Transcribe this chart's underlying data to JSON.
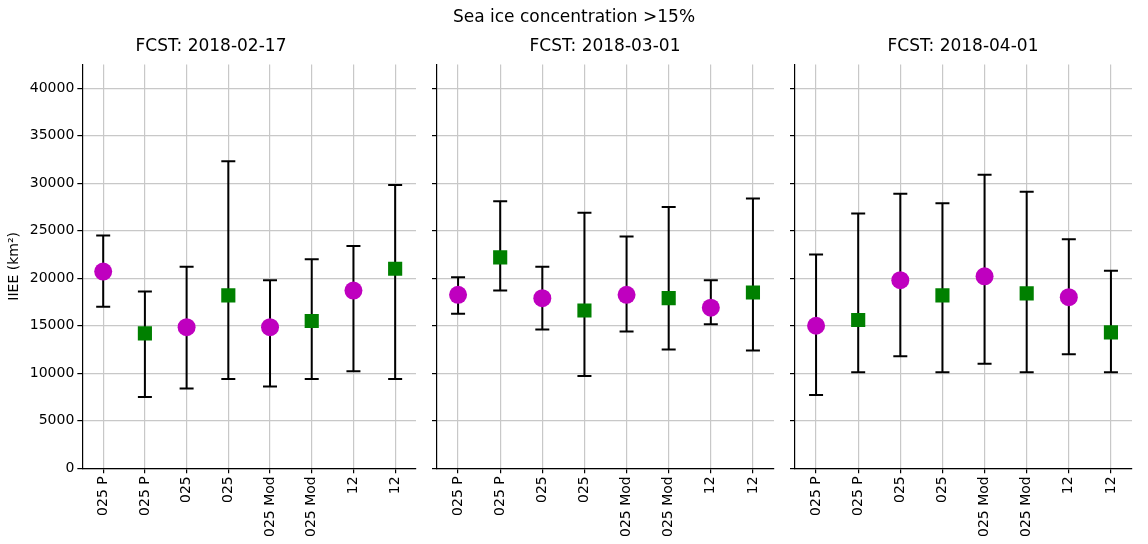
{
  "chart_data": [
    {
      "type": "scatter",
      "title": "FCST: 2018-02-17",
      "ylabel": "IIEE (km²)",
      "annotations": [
        "Sea ice concentration >15%"
      ],
      "categories": [
        "025 P",
        "025 P",
        "025",
        "025",
        "025 Mod",
        "025 Mod",
        "12",
        "12"
      ],
      "ylim": [
        0,
        42500
      ],
      "yticks": [
        0,
        5000,
        10000,
        15000,
        20000,
        25000,
        30000,
        35000,
        40000
      ],
      "grid": true,
      "series": [
        {
          "color": "#bf00bf",
          "marker": "circle",
          "values": [
            20700,
            null,
            14850,
            null,
            14850,
            null,
            18700,
            null
          ],
          "errors": [
            [
              17000,
              24500
            ],
            null,
            [
              8400,
              21200
            ],
            null,
            [
              8600,
              19800
            ],
            null,
            [
              10200,
              23400
            ],
            null
          ]
        },
        {
          "color": "#008000",
          "marker": "square",
          "values": [
            null,
            14200,
            null,
            18200,
            null,
            15500,
            null,
            21000
          ],
          "errors": [
            null,
            [
              7500,
              18600
            ],
            null,
            [
              9400,
              32300
            ],
            null,
            [
              9400,
              22000
            ],
            null,
            [
              9400,
              29800
            ]
          ]
        }
      ]
    },
    {
      "type": "scatter",
      "title": "FCST: 2018-03-01",
      "categories": [
        "025 P",
        "025 P",
        "025",
        "025",
        "025 Mod",
        "025 Mod",
        "12",
        "12"
      ],
      "ylim": [
        0,
        42500
      ],
      "yticks": [
        0,
        5000,
        10000,
        15000,
        20000,
        25000,
        30000,
        35000,
        40000
      ],
      "grid": true,
      "tick_labels": "x",
      "series": [
        {
          "color": "#bf00bf",
          "marker": "circle",
          "values": [
            18250,
            null,
            17900,
            null,
            18250,
            null,
            16900,
            null
          ],
          "errors": [
            [
              16250,
              20100
            ],
            null,
            [
              14600,
              21200
            ],
            null,
            [
              14400,
              24400
            ],
            null,
            [
              15150,
              19800
            ],
            null
          ]
        },
        {
          "color": "#008000",
          "marker": "square",
          "values": [
            null,
            22200,
            null,
            16600,
            null,
            17900,
            null,
            18500
          ],
          "errors": [
            null,
            [
              18700,
              28100
            ],
            null,
            [
              9700,
              26900
            ],
            null,
            [
              12500,
              27500
            ],
            null,
            [
              12400,
              28400
            ]
          ]
        }
      ]
    },
    {
      "type": "scatter",
      "title": "FCST: 2018-04-01",
      "categories": [
        "025 P",
        "025 P",
        "025",
        "025",
        "025 Mod",
        "025 Mod",
        "12",
        "12"
      ],
      "ylim": [
        0,
        42500
      ],
      "yticks": [
        0,
        5000,
        10000,
        15000,
        20000,
        25000,
        30000,
        35000,
        40000
      ],
      "grid": true,
      "tick_labels": "x",
      "series": [
        {
          "color": "#bf00bf",
          "marker": "circle",
          "values": [
            15000,
            null,
            19800,
            null,
            20200,
            null,
            18000,
            null
          ],
          "errors": [
            [
              7700,
              22500
            ],
            null,
            [
              11800,
              28900
            ],
            null,
            [
              11000,
              30900
            ],
            null,
            [
              12000,
              24100
            ],
            null
          ]
        },
        {
          "color": "#008000",
          "marker": "square",
          "values": [
            null,
            15600,
            null,
            18200,
            null,
            18400,
            null,
            14300
          ],
          "errors": [
            null,
            [
              10100,
              26800
            ],
            null,
            [
              10100,
              27900
            ],
            null,
            [
              10100,
              29100
            ],
            null,
            [
              10100,
              20800
            ]
          ]
        }
      ]
    }
  ]
}
